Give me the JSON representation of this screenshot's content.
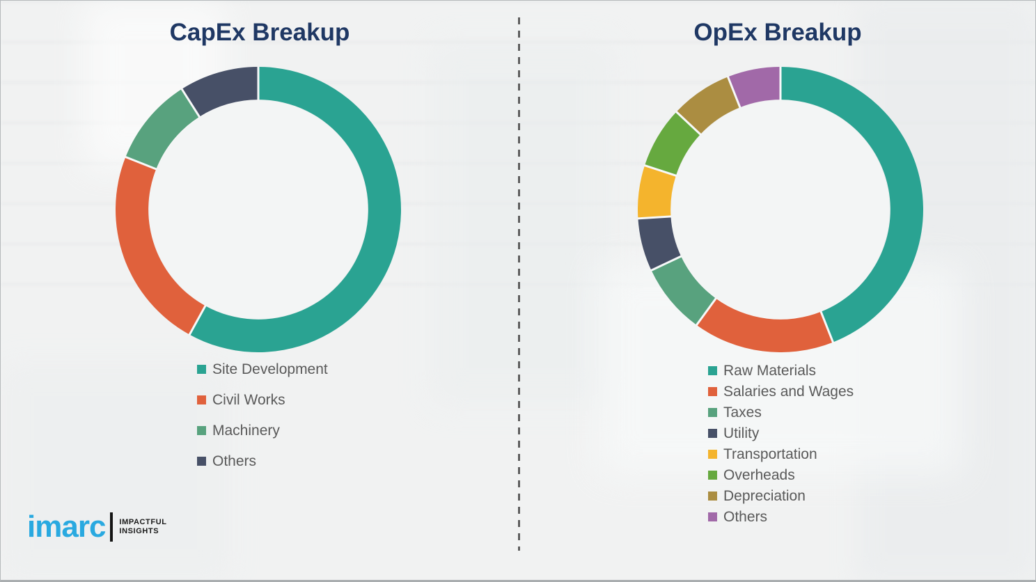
{
  "chart_data": [
    {
      "type": "pie",
      "subtype": "donut",
      "title": "CapEx Breakup",
      "labels": [
        "Site Development",
        "Civil Works",
        "Machinery",
        "Others"
      ],
      "values": [
        58,
        23,
        10,
        9
      ],
      "unit": "percent-estimated-from-arc-angles",
      "colors": [
        "#2aa392",
        "#e0613c",
        "#58a27e",
        "#475067"
      ],
      "start_angle_deg": 0,
      "direction": "clockwise",
      "donut_hole_ratio": 0.77,
      "legend_position": "below-left",
      "data_labels_shown": false
    },
    {
      "type": "pie",
      "subtype": "donut",
      "title": "OpEx Breakup",
      "labels": [
        "Raw Materials",
        "Salaries and Wages",
        "Taxes",
        "Utility",
        "Transportation",
        "Overheads",
        "Depreciation",
        "Others"
      ],
      "values": [
        44,
        16,
        8,
        6,
        6,
        7,
        7,
        6
      ],
      "unit": "percent-estimated-from-arc-angles",
      "colors": [
        "#2aa392",
        "#e0613c",
        "#58a27e",
        "#475067",
        "#f4b42d",
        "#66a93f",
        "#ab8d41",
        "#a169a8"
      ],
      "start_angle_deg": 0,
      "direction": "clockwise",
      "donut_hole_ratio": 0.77,
      "legend_position": "below-left",
      "data_labels_shown": false
    }
  ],
  "branding": {
    "brand": "imarc",
    "tagline_line1": "IMPACTFUL",
    "tagline_line2": "INSIGHTS",
    "brand_color": "#29a9e0"
  },
  "style_colors": {
    "title_text": "#1f3864",
    "legend_text": "#595959",
    "divider": "#5e5e5e",
    "background": "#f1f2f2",
    "slice_separator": "#f7f9f9",
    "donut_hole": "#f3f5f5"
  }
}
